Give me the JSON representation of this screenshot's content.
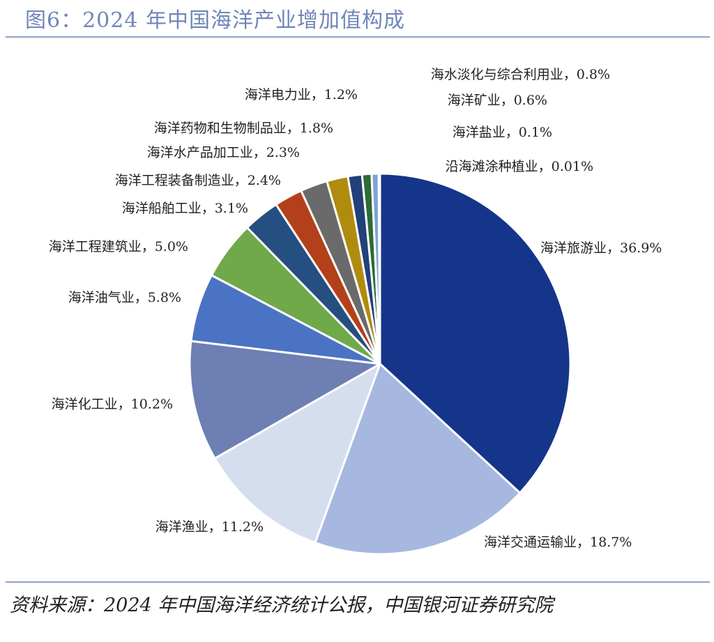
{
  "title": "图6：2024 年中国海洋产业增加值构成",
  "source": "资料来源：2024 年中国海洋经济统计公报，中国银河证券研究院",
  "chart_data": {
    "type": "pie",
    "title": "2024 年中国海洋产业增加值构成",
    "unit": "%",
    "label_separator": "，",
    "slices": [
      {
        "name": "海洋旅游业",
        "value": 36.9,
        "label": "36.9%",
        "color": "#15358a"
      },
      {
        "name": "海洋交通运输业",
        "value": 18.7,
        "label": "18.7%",
        "color": "#a6b8e0"
      },
      {
        "name": "海洋渔业",
        "value": 11.2,
        "label": "11.2%",
        "color": "#d5deef"
      },
      {
        "name": "海洋化工业",
        "value": 10.2,
        "label": "10.2%",
        "color": "#6d7fb3"
      },
      {
        "name": "海洋油气业",
        "value": 5.8,
        "label": "5.8%",
        "color": "#4b73c4"
      },
      {
        "name": "海洋工程建筑业",
        "value": 5.0,
        "label": "5.0%",
        "color": "#6fa94a"
      },
      {
        "name": "海洋船舶工业",
        "value": 3.1,
        "label": "3.1%",
        "color": "#254f80"
      },
      {
        "name": "海洋工程装备制造业",
        "value": 2.4,
        "label": "2.4%",
        "color": "#b3401a"
      },
      {
        "name": "海洋水产品加工业",
        "value": 2.3,
        "label": "2.3%",
        "color": "#6a6a6a"
      },
      {
        "name": "海洋药物和生物制品业",
        "value": 1.8,
        "label": "1.8%",
        "color": "#b08c0e"
      },
      {
        "name": "海洋电力业",
        "value": 1.2,
        "label": "1.2%",
        "color": "#22407a"
      },
      {
        "name": "海水淡化与综合利用业",
        "value": 0.8,
        "label": "0.8%",
        "color": "#2f6b34"
      },
      {
        "name": "海洋矿业",
        "value": 0.6,
        "label": "0.6%",
        "color": "#7fa3d6"
      },
      {
        "name": "海洋盐业",
        "value": 0.1,
        "label": "0.1%",
        "color": "#bcd0ea"
      },
      {
        "name": "沿海滩涂种植业",
        "value": 0.01,
        "label": "0.01%",
        "color": "#9bb7a0"
      }
    ]
  }
}
